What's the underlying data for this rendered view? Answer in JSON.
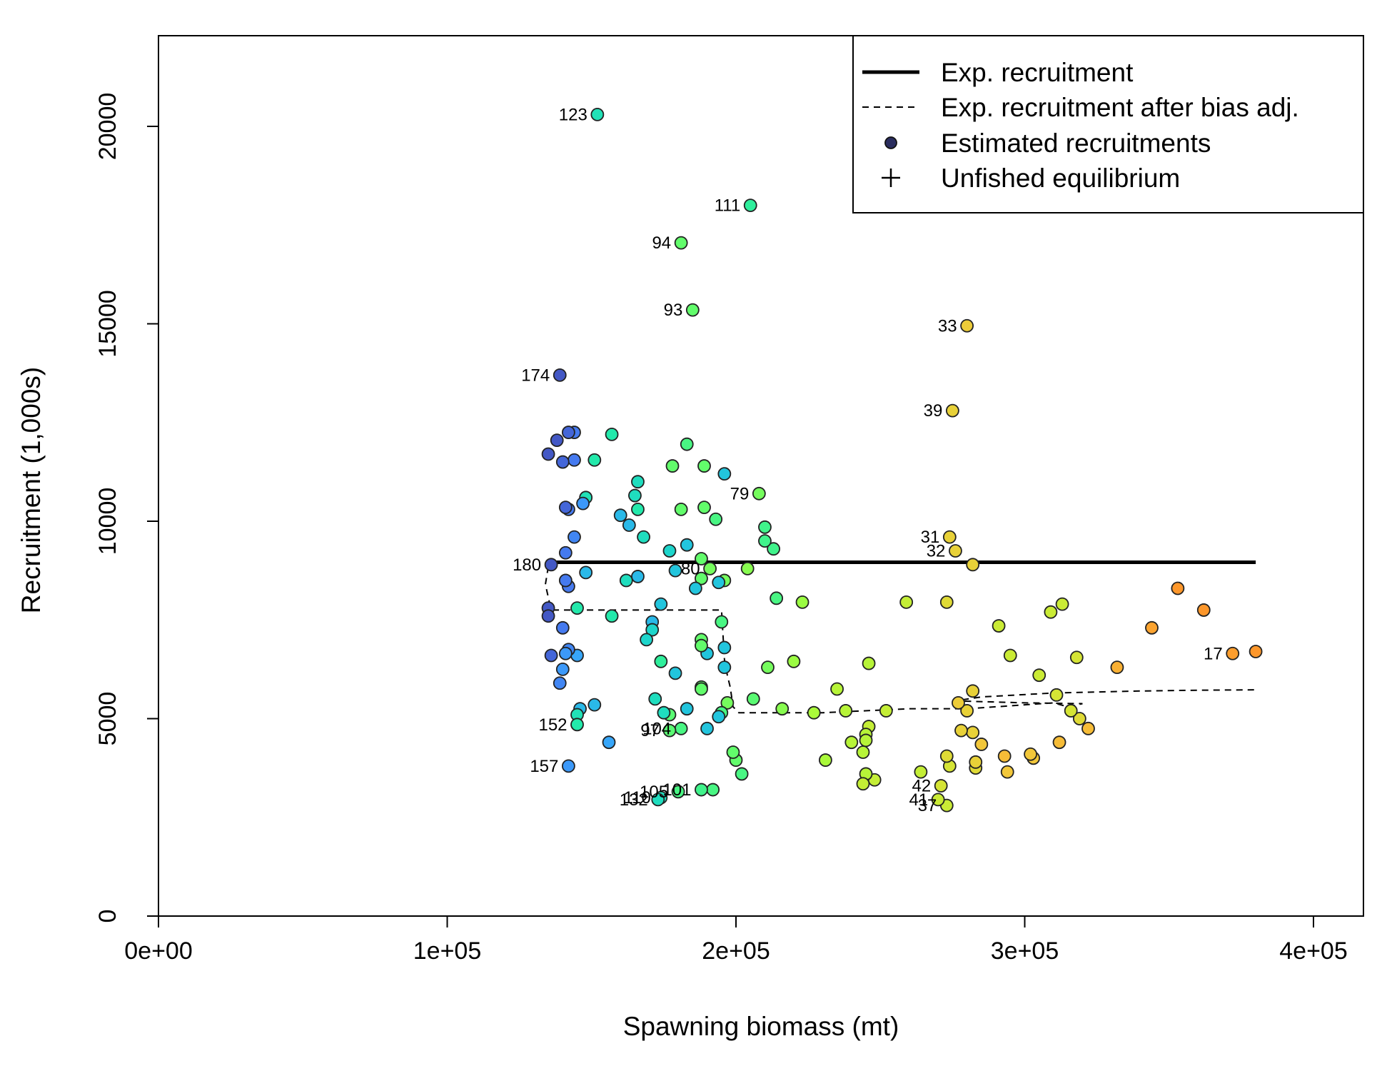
{
  "chart_data": {
    "type": "scatter",
    "title": "",
    "xlabel": "Spawning biomass (mt)",
    "ylabel": "Recruitment (1,000s)",
    "xlim": [
      0,
      415000
    ],
    "ylim": [
      0,
      22500
    ],
    "x_ticks": [
      {
        "value": 0,
        "label": "0e+00"
      },
      {
        "value": 100000,
        "label": "1e+05"
      },
      {
        "value": 200000,
        "label": "2e+05"
      },
      {
        "value": 300000,
        "label": "3e+05"
      },
      {
        "value": 400000,
        "label": "4e+05"
      }
    ],
    "y_ticks": [
      {
        "value": 0,
        "label": "0"
      },
      {
        "value": 5000,
        "label": "5000"
      },
      {
        "value": 10000,
        "label": "10000"
      },
      {
        "value": 15000,
        "label": "15000"
      },
      {
        "value": 20000,
        "label": "20000"
      }
    ],
    "grid": false,
    "legend": {
      "position": "top-right",
      "entries": [
        {
          "label": "Exp. recruitment",
          "symbol": "solid-line"
        },
        {
          "label": "Exp. recruitment after bias adj.",
          "symbol": "dashed-line"
        },
        {
          "label": "Estimated recruitments",
          "symbol": "filled-circle",
          "color": "#2a2d5e"
        },
        {
          "label": "Unfished equilibrium",
          "symbol": "plus"
        }
      ]
    },
    "colormap": [
      "#30123b",
      "#4145ab",
      "#4675ed",
      "#39a2fc",
      "#1bcfd4",
      "#24eca6",
      "#61fc6c",
      "#a4fc3b",
      "#d1e834",
      "#f3c63a",
      "#fe9b2d",
      "#f36315",
      "#d93806",
      "#b11901",
      "#7a0402"
    ],
    "exp_recruitment_line": [
      [
        135000,
        8940
      ],
      [
        138000,
        8960
      ],
      [
        380000,
        8960
      ]
    ],
    "exp_recruitment_bias_adj_line": [
      [
        135000,
        8850
      ],
      [
        134000,
        8400
      ],
      [
        136000,
        7750
      ],
      [
        170000,
        7750
      ],
      [
        195000,
        7750
      ],
      [
        196000,
        6500
      ],
      [
        197000,
        6100
      ],
      [
        198000,
        5800
      ],
      [
        199000,
        5300
      ],
      [
        201000,
        5150
      ],
      [
        230000,
        5150
      ],
      [
        260000,
        5250
      ],
      [
        280000,
        5250
      ],
      [
        290000,
        5300
      ],
      [
        310000,
        5400
      ],
      [
        315000,
        5300
      ],
      [
        320000,
        5380
      ],
      [
        300000,
        5400
      ],
      [
        276000,
        5450
      ],
      [
        285000,
        5550
      ],
      [
        310000,
        5650
      ],
      [
        340000,
        5700
      ],
      [
        360000,
        5720
      ],
      [
        380000,
        5730
      ]
    ],
    "points": [
      {
        "x": 380000,
        "y": 6700,
        "c": 0.72
      },
      {
        "x": 372000,
        "y": 6650,
        "c": 0.71,
        "label": "17"
      },
      {
        "x": 362000,
        "y": 7750,
        "c": 0.72
      },
      {
        "x": 353000,
        "y": 8300,
        "c": 0.72
      },
      {
        "x": 344000,
        "y": 7300,
        "c": 0.7
      },
      {
        "x": 332000,
        "y": 6300,
        "c": 0.68
      },
      {
        "x": 322000,
        "y": 4750,
        "c": 0.66
      },
      {
        "x": 319000,
        "y": 5000,
        "c": 0.6
      },
      {
        "x": 316000,
        "y": 5200,
        "c": 0.58
      },
      {
        "x": 318000,
        "y": 6550,
        "c": 0.58
      },
      {
        "x": 313000,
        "y": 7900,
        "c": 0.56
      },
      {
        "x": 312000,
        "y": 4400,
        "c": 0.66
      },
      {
        "x": 311000,
        "y": 5600,
        "c": 0.58
      },
      {
        "x": 309000,
        "y": 7700,
        "c": 0.56
      },
      {
        "x": 305000,
        "y": 6100,
        "c": 0.56
      },
      {
        "x": 303000,
        "y": 4000,
        "c": 0.64
      },
      {
        "x": 302000,
        "y": 4100,
        "c": 0.64
      },
      {
        "x": 295000,
        "y": 6600,
        "c": 0.56
      },
      {
        "x": 294000,
        "y": 3650,
        "c": 0.64
      },
      {
        "x": 293000,
        "y": 4050,
        "c": 0.66
      },
      {
        "x": 291000,
        "y": 7350,
        "c": 0.56
      },
      {
        "x": 285000,
        "y": 4350,
        "c": 0.64
      },
      {
        "x": 283000,
        "y": 3750,
        "c": 0.6
      },
      {
        "x": 283000,
        "y": 3900,
        "c": 0.62
      },
      {
        "x": 282000,
        "y": 4650,
        "c": 0.62
      },
      {
        "x": 282000,
        "y": 5700,
        "c": 0.62
      },
      {
        "x": 282000,
        "y": 8900,
        "c": 0.62
      },
      {
        "x": 280000,
        "y": 14950,
        "c": 0.63,
        "label": "33"
      },
      {
        "x": 280000,
        "y": 5200,
        "c": 0.62
      },
      {
        "x": 278000,
        "y": 4700,
        "c": 0.62
      },
      {
        "x": 277000,
        "y": 5400,
        "c": 0.63
      },
      {
        "x": 276000,
        "y": 9250,
        "c": 0.62,
        "label": "32"
      },
      {
        "x": 275000,
        "y": 12800,
        "c": 0.62,
        "label": "39"
      },
      {
        "x": 274000,
        "y": 9600,
        "c": 0.62,
        "label": "31"
      },
      {
        "x": 274000,
        "y": 3800,
        "c": 0.58
      },
      {
        "x": 273000,
        "y": 2800,
        "c": 0.56,
        "label": "37"
      },
      {
        "x": 273000,
        "y": 4050,
        "c": 0.6
      },
      {
        "x": 273000,
        "y": 7950,
        "c": 0.6
      },
      {
        "x": 271000,
        "y": 3300,
        "c": 0.58,
        "label": "42"
      },
      {
        "x": 270000,
        "y": 2950,
        "c": 0.56,
        "label": "41"
      },
      {
        "x": 264000,
        "y": 3650,
        "c": 0.55
      },
      {
        "x": 259000,
        "y": 7950,
        "c": 0.55
      },
      {
        "x": 252000,
        "y": 5200,
        "c": 0.55
      },
      {
        "x": 248000,
        "y": 3450,
        "c": 0.55
      },
      {
        "x": 246000,
        "y": 6400,
        "c": 0.53
      },
      {
        "x": 246000,
        "y": 4800,
        "c": 0.55
      },
      {
        "x": 245000,
        "y": 4600,
        "c": 0.53
      },
      {
        "x": 245000,
        "y": 4450,
        "c": 0.53
      },
      {
        "x": 245000,
        "y": 3600,
        "c": 0.53
      },
      {
        "x": 244000,
        "y": 3350,
        "c": 0.55
      },
      {
        "x": 244000,
        "y": 4150,
        "c": 0.53
      },
      {
        "x": 240000,
        "y": 4400,
        "c": 0.53
      },
      {
        "x": 238000,
        "y": 5200,
        "c": 0.53
      },
      {
        "x": 235000,
        "y": 5750,
        "c": 0.53
      },
      {
        "x": 231000,
        "y": 3950,
        "c": 0.51
      },
      {
        "x": 227000,
        "y": 5150,
        "c": 0.51
      },
      {
        "x": 223000,
        "y": 7950,
        "c": 0.49
      },
      {
        "x": 220000,
        "y": 6450,
        "c": 0.49
      },
      {
        "x": 216000,
        "y": 5250,
        "c": 0.47
      },
      {
        "x": 214000,
        "y": 8050,
        "c": 0.4
      },
      {
        "x": 213000,
        "y": 9300,
        "c": 0.39
      },
      {
        "x": 211000,
        "y": 6300,
        "c": 0.45
      },
      {
        "x": 210000,
        "y": 9850,
        "c": 0.39
      },
      {
        "x": 210000,
        "y": 9500,
        "c": 0.39
      },
      {
        "x": 208000,
        "y": 10700,
        "c": 0.45,
        "label": "79"
      },
      {
        "x": 206000,
        "y": 5500,
        "c": 0.42
      },
      {
        "x": 205000,
        "y": 18000,
        "c": 0.37,
        "label": "111"
      },
      {
        "x": 204000,
        "y": 8800,
        "c": 0.47
      },
      {
        "x": 202000,
        "y": 3600,
        "c": 0.4
      },
      {
        "x": 200000,
        "y": 3950,
        "c": 0.43
      },
      {
        "x": 199000,
        "y": 4150,
        "c": 0.43
      },
      {
        "x": 197000,
        "y": 5400,
        "c": 0.45
      },
      {
        "x": 196000,
        "y": 8500,
        "c": 0.45
      },
      {
        "x": 196000,
        "y": 11200,
        "c": 0.27
      },
      {
        "x": 196000,
        "y": 6800,
        "c": 0.27
      },
      {
        "x": 196000,
        "y": 6300,
        "c": 0.27
      },
      {
        "x": 195000,
        "y": 7450,
        "c": 0.4
      },
      {
        "x": 195000,
        "y": 5150,
        "c": 0.4
      },
      {
        "x": 194000,
        "y": 5050,
        "c": 0.27
      },
      {
        "x": 194000,
        "y": 8450,
        "c": 0.27
      },
      {
        "x": 193000,
        "y": 10050,
        "c": 0.4
      },
      {
        "x": 192000,
        "y": 3200,
        "c": 0.4
      },
      {
        "x": 191000,
        "y": 8800,
        "c": 0.45,
        "label": "80"
      },
      {
        "x": 190000,
        "y": 6650,
        "c": 0.27
      },
      {
        "x": 190000,
        "y": 4750,
        "c": 0.27
      },
      {
        "x": 189000,
        "y": 10350,
        "c": 0.43
      },
      {
        "x": 189000,
        "y": 11400,
        "c": 0.43
      },
      {
        "x": 188000,
        "y": 9050,
        "c": 0.43
      },
      {
        "x": 188000,
        "y": 8550,
        "c": 0.43
      },
      {
        "x": 188000,
        "y": 7000,
        "c": 0.43
      },
      {
        "x": 188000,
        "y": 6850,
        "c": 0.43
      },
      {
        "x": 188000,
        "y": 5800,
        "c": 0.43
      },
      {
        "x": 188000,
        "y": 5750,
        "c": 0.43
      },
      {
        "x": 188000,
        "y": 3200,
        "c": 0.39,
        "label": "101"
      },
      {
        "x": 186000,
        "y": 8300,
        "c": 0.27
      },
      {
        "x": 185000,
        "y": 15350,
        "c": 0.43,
        "label": "93"
      },
      {
        "x": 183000,
        "y": 9400,
        "c": 0.27
      },
      {
        "x": 183000,
        "y": 11950,
        "c": 0.4
      },
      {
        "x": 183000,
        "y": 5250,
        "c": 0.27
      },
      {
        "x": 181000,
        "y": 17050,
        "c": 0.43,
        "label": "94"
      },
      {
        "x": 181000,
        "y": 10300,
        "c": 0.43
      },
      {
        "x": 181000,
        "y": 4750,
        "c": 0.4,
        "label": "104"
      },
      {
        "x": 180000,
        "y": 3150,
        "c": 0.4,
        "label": "105"
      },
      {
        "x": 179000,
        "y": 6150,
        "c": 0.27
      },
      {
        "x": 179000,
        "y": 8750,
        "c": 0.27
      },
      {
        "x": 178000,
        "y": 11400,
        "c": 0.43
      },
      {
        "x": 177000,
        "y": 9250,
        "c": 0.3
      },
      {
        "x": 177000,
        "y": 5100,
        "c": 0.42
      },
      {
        "x": 177000,
        "y": 4700,
        "c": 0.42,
        "label": "97"
      },
      {
        "x": 175000,
        "y": 5150,
        "c": 0.32
      },
      {
        "x": 174000,
        "y": 6450,
        "c": 0.37
      },
      {
        "x": 174000,
        "y": 7900,
        "c": 0.27
      },
      {
        "x": 174000,
        "y": 3000,
        "c": 0.32,
        "label": "110"
      },
      {
        "x": 173000,
        "y": 2950,
        "c": 0.32,
        "label": "132"
      },
      {
        "x": 172000,
        "y": 5500,
        "c": 0.32
      },
      {
        "x": 171000,
        "y": 7450,
        "c": 0.25
      },
      {
        "x": 171000,
        "y": 7250,
        "c": 0.3
      },
      {
        "x": 169000,
        "y": 7000,
        "c": 0.3
      },
      {
        "x": 168000,
        "y": 9600,
        "c": 0.32
      },
      {
        "x": 166000,
        "y": 11000,
        "c": 0.32
      },
      {
        "x": 166000,
        "y": 10300,
        "c": 0.35
      },
      {
        "x": 166000,
        "y": 8600,
        "c": 0.25
      },
      {
        "x": 165000,
        "y": 10650,
        "c": 0.32
      },
      {
        "x": 163000,
        "y": 9900,
        "c": 0.25
      },
      {
        "x": 162000,
        "y": 8500,
        "c": 0.32
      },
      {
        "x": 160000,
        "y": 10150,
        "c": 0.25
      },
      {
        "x": 157000,
        "y": 12200,
        "c": 0.35
      },
      {
        "x": 157000,
        "y": 7600,
        "c": 0.35
      },
      {
        "x": 156000,
        "y": 4400,
        "c": 0.22
      },
      {
        "x": 152000,
        "y": 20300,
        "c": 0.33,
        "label": "123"
      },
      {
        "x": 151000,
        "y": 11550,
        "c": 0.35
      },
      {
        "x": 151000,
        "y": 5350,
        "c": 0.25
      },
      {
        "x": 148000,
        "y": 10600,
        "c": 0.33
      },
      {
        "x": 148000,
        "y": 8700,
        "c": 0.25
      },
      {
        "x": 147000,
        "y": 10450,
        "c": 0.2
      },
      {
        "x": 146000,
        "y": 5250,
        "c": 0.25
      },
      {
        "x": 145000,
        "y": 5100,
        "c": 0.33
      },
      {
        "x": 145000,
        "y": 4850,
        "c": 0.35,
        "label": "152"
      },
      {
        "x": 145000,
        "y": 7800,
        "c": 0.35
      },
      {
        "x": 145000,
        "y": 6600,
        "c": 0.22
      },
      {
        "x": 144000,
        "y": 12250,
        "c": 0.15
      },
      {
        "x": 144000,
        "y": 11550,
        "c": 0.15
      },
      {
        "x": 144000,
        "y": 9600,
        "c": 0.17
      },
      {
        "x": 142000,
        "y": 12250,
        "c": 0.12
      },
      {
        "x": 142000,
        "y": 10300,
        "c": 0.15
      },
      {
        "x": 142000,
        "y": 8350,
        "c": 0.15
      },
      {
        "x": 142000,
        "y": 6750,
        "c": 0.17
      },
      {
        "x": 142000,
        "y": 3800,
        "c": 0.2,
        "label": "157"
      },
      {
        "x": 141000,
        "y": 10350,
        "c": 0.12
      },
      {
        "x": 141000,
        "y": 9200,
        "c": 0.15
      },
      {
        "x": 141000,
        "y": 8500,
        "c": 0.15
      },
      {
        "x": 141000,
        "y": 6650,
        "c": 0.2
      },
      {
        "x": 140000,
        "y": 11500,
        "c": 0.12
      },
      {
        "x": 140000,
        "y": 7300,
        "c": 0.15
      },
      {
        "x": 140000,
        "y": 6250,
        "c": 0.2
      },
      {
        "x": 139000,
        "y": 13700,
        "c": 0.1,
        "label": "174"
      },
      {
        "x": 139000,
        "y": 5900,
        "c": 0.17
      },
      {
        "x": 138000,
        "y": 12050,
        "c": 0.1
      },
      {
        "x": 136000,
        "y": 8900,
        "c": 0.1,
        "label": "180"
      },
      {
        "x": 136000,
        "y": 6600,
        "c": 0.12
      },
      {
        "x": 135000,
        "y": 11700,
        "c": 0.1
      },
      {
        "x": 135000,
        "y": 7800,
        "c": 0.1
      },
      {
        "x": 135000,
        "y": 7600,
        "c": 0.1
      }
    ]
  }
}
